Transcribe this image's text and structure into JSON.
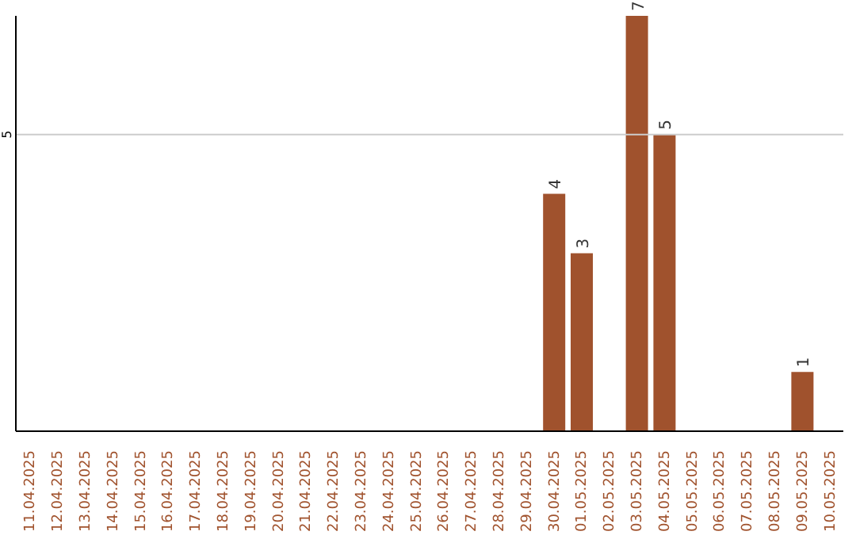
{
  "chart_data": {
    "type": "bar",
    "categories": [
      "11.04.2025",
      "12.04.2025",
      "13.04.2025",
      "14.04.2025",
      "15.04.2025",
      "16.04.2025",
      "17.04.2025",
      "18.04.2025",
      "19.04.2025",
      "20.04.2025",
      "21.04.2025",
      "22.04.2025",
      "23.04.2025",
      "24.04.2025",
      "25.04.2025",
      "26.04.2025",
      "27.04.2025",
      "28.04.2025",
      "29.04.2025",
      "30.04.2025",
      "01.05.2025",
      "02.05.2025",
      "03.05.2025",
      "04.05.2025",
      "05.05.2025",
      "06.05.2025",
      "07.05.2025",
      "08.05.2025",
      "09.05.2025",
      "10.05.2025"
    ],
    "values": [
      null,
      null,
      null,
      null,
      null,
      null,
      null,
      null,
      null,
      null,
      null,
      null,
      null,
      null,
      null,
      null,
      null,
      null,
      null,
      4,
      3,
      null,
      7,
      5,
      null,
      null,
      null,
      null,
      1,
      null
    ],
    "data_labels": true,
    "color": "#a0522d",
    "ylim": [
      0,
      7
    ],
    "ref_lines": [
      {
        "axis": "y",
        "value": 5,
        "label": "5",
        "color": "#cccccc"
      }
    ]
  }
}
